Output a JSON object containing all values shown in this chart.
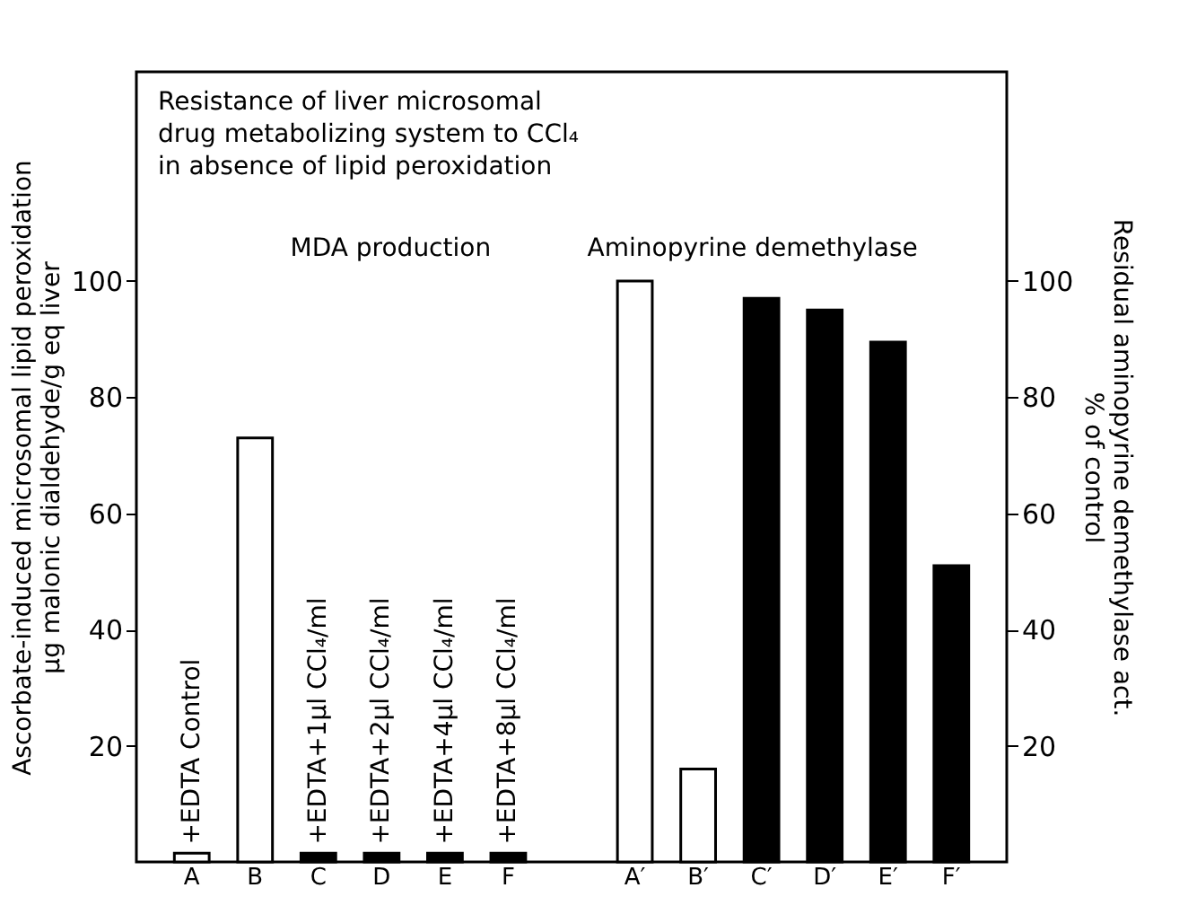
{
  "chart_data": {
    "type": "bar",
    "title": "Resistance of liver microsomal\ndrug metabolizing system to CCl₄\nin absence of lipid peroxidation",
    "ylabel": "Ascorbate-induced microsomal lipid peroxidation\nµg malonic dialdehyde/g eq liver",
    "y2label": "Residual aminopyrine demethylase act.\n% of control",
    "categories": [
      "A",
      "B",
      "C",
      "D",
      "E",
      "F",
      null,
      "A′",
      "B′",
      "C′",
      "D′",
      "E′",
      "F′"
    ],
    "series": [
      {
        "colors": [
          "#ffffff",
          "#ffffff",
          "#000000",
          "#000000",
          "#000000",
          "#000000",
          null,
          null,
          null,
          null,
          null,
          null,
          null
        ],
        "values": [
          1.5,
          73,
          1.5,
          1.5,
          1.5,
          1.5,
          null,
          null,
          null,
          null,
          null,
          null,
          null
        ]
      },
      {
        "axis": "y2",
        "colors": [
          null,
          null,
          null,
          null,
          null,
          null,
          null,
          "#ffffff",
          "#ffffff",
          "#000000",
          "#000000",
          "#000000",
          "#000000"
        ],
        "values": [
          null,
          null,
          null,
          null,
          null,
          null,
          null,
          100,
          16,
          97,
          95,
          89.5,
          51
        ]
      }
    ],
    "ylim": [
      0,
      136
    ],
    "yticks": [
      20,
      40,
      60,
      80,
      100
    ],
    "y2lim": [
      0,
      136
    ],
    "y2ticks": [
      20,
      40,
      60,
      80,
      100
    ],
    "grid": false,
    "annotations": [
      "MDA production",
      "Aminopyrine demethylase",
      {
        "text": "+EDTA Control",
        "x": "A",
        "y": 3
      },
      {
        "text": "+EDTA+1µl CCl₄/ml",
        "x": "C",
        "y": 3
      },
      {
        "text": "+EDTA+2µl CCl₄/ml",
        "x": "D",
        "y": 3
      },
      {
        "text": "+EDTA+4µl CCl₄/ml",
        "x": "E",
        "y": 3
      },
      {
        "text": "+EDTA+8µl CCl₄/ml",
        "x": "F",
        "y": 3
      }
    ]
  }
}
